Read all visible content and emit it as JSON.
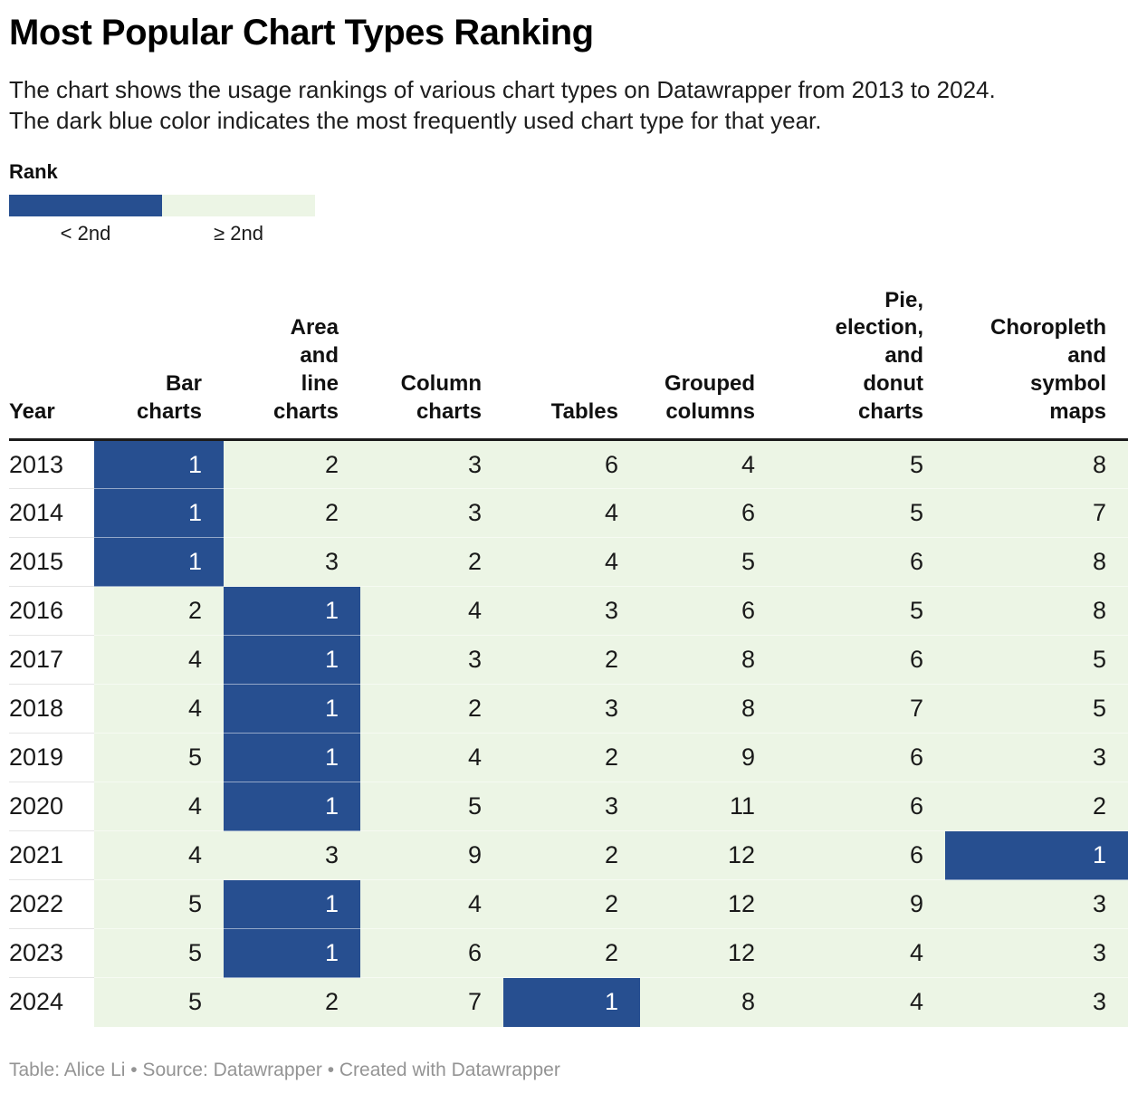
{
  "title": "Most Popular Chart Types Ranking",
  "subtitle_line1": "The chart shows the usage rankings of various chart types on Datawrapper from 2013 to 2024.",
  "subtitle_line2": "The dark blue color indicates the most frequently used chart type for that year.",
  "legend": {
    "title": "Rank",
    "items": [
      {
        "label": "< 2nd",
        "color": "#274f90"
      },
      {
        "label": "≥ 2nd",
        "color": "#ecf5e5"
      }
    ]
  },
  "colors": {
    "highlight_blue": "#274f90",
    "base_green": "#ecf5e5",
    "header_rule": "#1c1c1c",
    "footer_text": "#949494"
  },
  "footer": "Table: Alice Li • Source: Datawrapper • Created with Datawrapper",
  "chart_data": {
    "type": "heatmap",
    "title": "Most Popular Chart Types Ranking",
    "legend_position": "top-left",
    "highlight_rule": "cells with rank 1 (< 2nd) are dark blue; all other ranks light green",
    "columns": [
      "Year",
      "Bar charts",
      "Area and line charts",
      "Column charts",
      "Tables",
      "Grouped columns",
      "Pie, election, and donut charts",
      "Choropleth and symbol maps"
    ],
    "rows": [
      [
        "2013",
        1,
        2,
        3,
        6,
        4,
        5,
        8
      ],
      [
        "2014",
        1,
        2,
        3,
        4,
        6,
        5,
        7
      ],
      [
        "2015",
        1,
        3,
        2,
        4,
        5,
        6,
        8
      ],
      [
        "2016",
        2,
        1,
        4,
        3,
        6,
        5,
        8
      ],
      [
        "2017",
        4,
        1,
        3,
        2,
        8,
        6,
        5
      ],
      [
        "2018",
        4,
        1,
        2,
        3,
        8,
        7,
        5
      ],
      [
        "2019",
        5,
        1,
        4,
        2,
        9,
        6,
        3
      ],
      [
        "2020",
        4,
        1,
        5,
        3,
        11,
        6,
        2
      ],
      [
        "2021",
        4,
        3,
        9,
        2,
        12,
        6,
        1
      ],
      [
        "2022",
        5,
        1,
        4,
        2,
        12,
        9,
        3
      ],
      [
        "2023",
        5,
        1,
        6,
        2,
        12,
        4,
        3
      ],
      [
        "2024",
        5,
        2,
        7,
        1,
        8,
        4,
        3
      ]
    ]
  }
}
